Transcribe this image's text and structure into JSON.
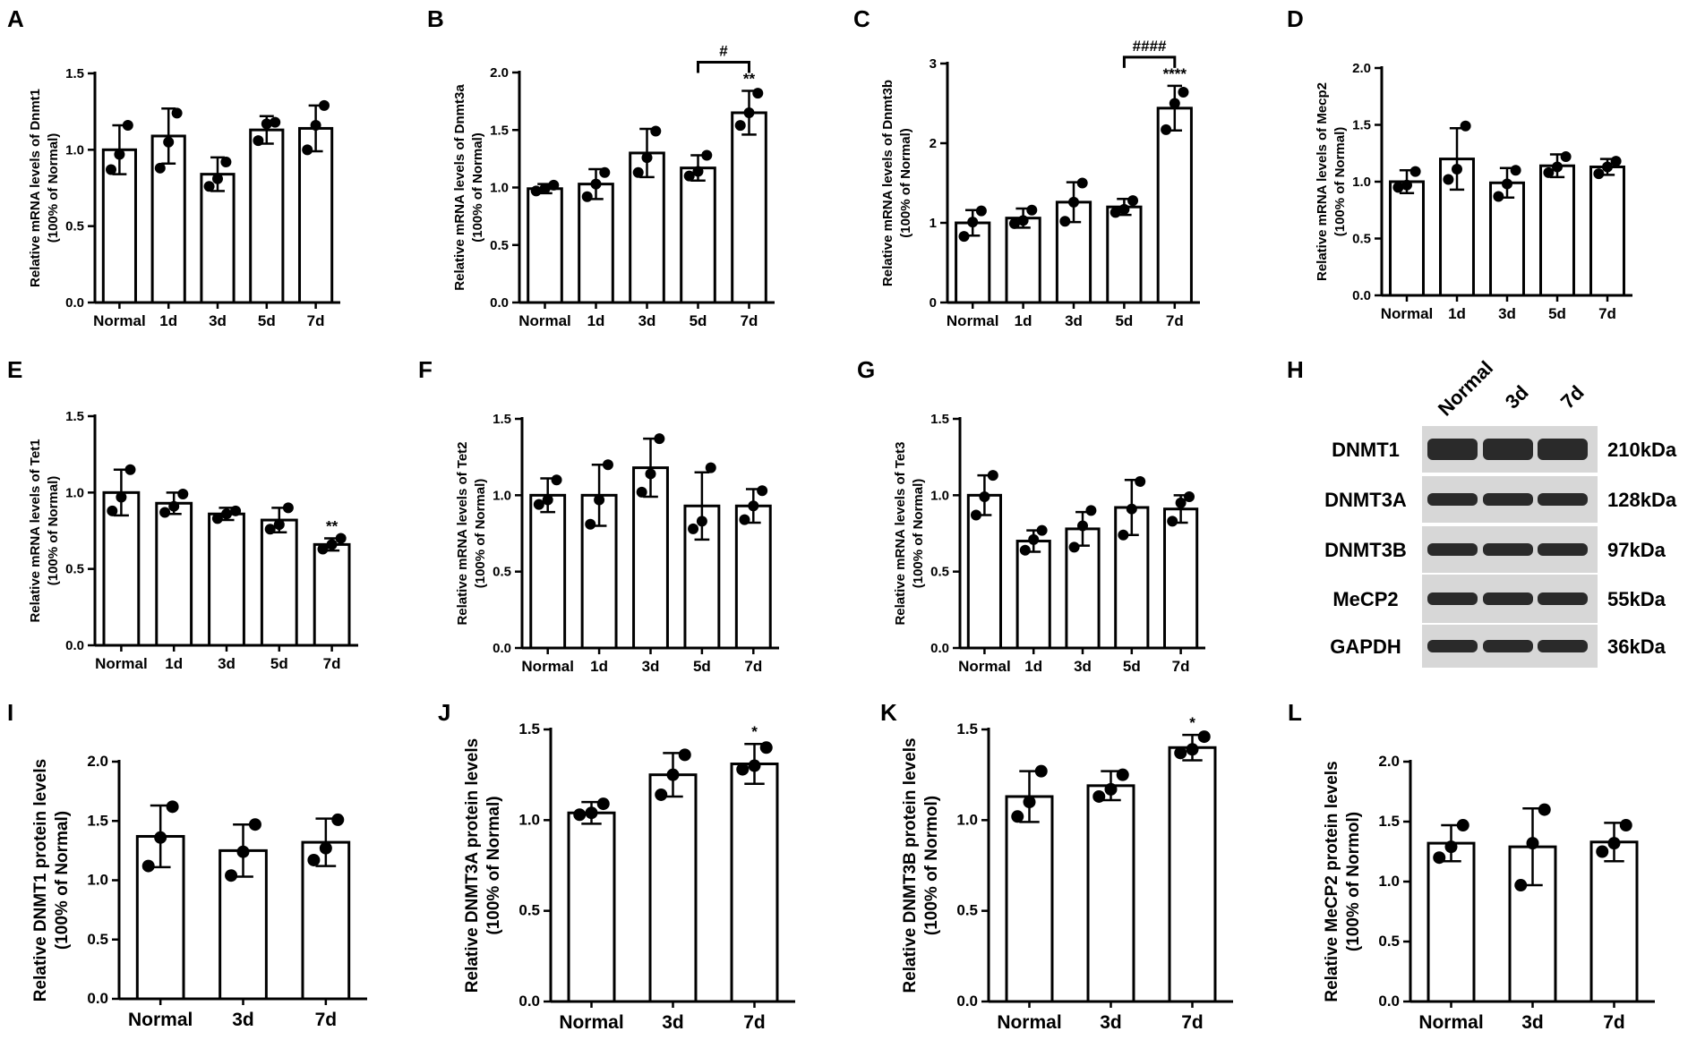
{
  "colors": {
    "bar_fill": "#ffffff",
    "stroke": "#000000",
    "blot_bg": "#d7d7d7",
    "band": "#2a2a2a"
  },
  "chart_data": [
    {
      "id": "A",
      "letter": "A",
      "type": "bar",
      "ylabel": "Relative mRNA levels of Dnmt1",
      "ylabel2": "(100% of Normal)",
      "categories": [
        "Normal",
        "1d",
        "3d",
        "5d",
        "7d"
      ],
      "ylim": [
        0,
        1.5
      ],
      "yticks": [
        "0.0",
        "0.5",
        "1.0",
        "1.5"
      ],
      "values": [
        1.0,
        1.09,
        0.84,
        1.13,
        1.14
      ],
      "sd": [
        0.16,
        0.18,
        0.11,
        0.09,
        0.15
      ],
      "points": [
        [
          0.87,
          0.97,
          1.16
        ],
        [
          0.88,
          1.05,
          1.24
        ],
        [
          0.76,
          0.81,
          0.92
        ],
        [
          1.06,
          1.17,
          1.18
        ],
        [
          1.0,
          1.16,
          1.29
        ]
      ],
      "sig": [
        "",
        "",
        "",
        "",
        ""
      ],
      "bracket": null
    },
    {
      "id": "B",
      "letter": "B",
      "type": "bar",
      "ylabel": "Relative mRNA levels of Dnmt3a",
      "ylabel2": "(100% of Normal)",
      "categories": [
        "Normal",
        "1d",
        "3d",
        "5d",
        "7d"
      ],
      "ylim": [
        0,
        2.0
      ],
      "yticks": [
        "0.0",
        "0.5",
        "1.0",
        "1.5",
        "2.0"
      ],
      "values": [
        0.99,
        1.03,
        1.3,
        1.17,
        1.65
      ],
      "sd": [
        0.04,
        0.13,
        0.21,
        0.11,
        0.19
      ],
      "points": [
        [
          0.97,
          0.99,
          1.02
        ],
        [
          0.92,
          1.03,
          1.13
        ],
        [
          1.13,
          1.26,
          1.49
        ],
        [
          1.1,
          1.14,
          1.28
        ],
        [
          1.54,
          1.65,
          1.82
        ]
      ],
      "sig": [
        "",
        "",
        "",
        "",
        "**"
      ],
      "bracket": {
        "from": 3,
        "to": 4,
        "label": "#"
      }
    },
    {
      "id": "C",
      "letter": "C",
      "type": "bar",
      "ylabel": "Relative mRNA levels of Dnmt3b",
      "ylabel2": "(100% of Normal)",
      "categories": [
        "Normal",
        "1d",
        "3d",
        "5d",
        "7d"
      ],
      "ylim": [
        0,
        3
      ],
      "yticks": [
        "0",
        "1",
        "2",
        "3"
      ],
      "values": [
        1.0,
        1.06,
        1.26,
        1.2,
        2.44
      ],
      "sd": [
        0.16,
        0.12,
        0.25,
        0.1,
        0.28
      ],
      "points": [
        [
          0.83,
          1.01,
          1.15
        ],
        [
          0.99,
          1.03,
          1.16
        ],
        [
          1.02,
          1.26,
          1.5
        ],
        [
          1.13,
          1.17,
          1.28
        ],
        [
          2.17,
          2.5,
          2.64
        ]
      ],
      "sig": [
        "",
        "",
        "",
        "",
        "****"
      ],
      "bracket": {
        "from": 3,
        "to": 4,
        "label": "####"
      }
    },
    {
      "id": "D",
      "letter": "D",
      "type": "bar",
      "ylabel": "Relative mRNA levels of Mecp2",
      "ylabel2": "(100% of Normal)",
      "categories": [
        "Normal",
        "1d",
        "3d",
        "5d",
        "7d"
      ],
      "ylim": [
        0,
        2.0
      ],
      "yticks": [
        "0.0",
        "0.5",
        "1.0",
        "1.5",
        "2.0"
      ],
      "values": [
        1.0,
        1.2,
        0.99,
        1.14,
        1.13
      ],
      "sd": [
        0.1,
        0.27,
        0.13,
        0.1,
        0.07
      ],
      "points": [
        [
          0.95,
          0.97,
          1.09
        ],
        [
          1.02,
          1.11,
          1.49
        ],
        [
          0.87,
          0.98,
          1.1
        ],
        [
          1.08,
          1.13,
          1.22
        ],
        [
          1.07,
          1.13,
          1.18
        ]
      ],
      "sig": [
        "",
        "",
        "",
        "",
        ""
      ],
      "bracket": null
    },
    {
      "id": "E",
      "letter": "E",
      "type": "bar",
      "ylabel": "Relative mRNA levels of Tet1",
      "ylabel2": "(100% of Normal)",
      "categories": [
        "Normal",
        "1d",
        "3d",
        "5d",
        "7d"
      ],
      "ylim": [
        0,
        1.5
      ],
      "yticks": [
        "0.0",
        "0.5",
        "1.0",
        "1.5"
      ],
      "values": [
        1.0,
        0.93,
        0.86,
        0.82,
        0.66
      ],
      "sd": [
        0.15,
        0.07,
        0.04,
        0.08,
        0.04
      ],
      "points": [
        [
          0.88,
          0.97,
          1.15
        ],
        [
          0.87,
          0.91,
          0.99
        ],
        [
          0.83,
          0.86,
          0.88
        ],
        [
          0.76,
          0.79,
          0.9
        ],
        [
          0.63,
          0.66,
          0.7
        ]
      ],
      "sig": [
        "",
        "",
        "",
        "",
        "**"
      ],
      "bracket": null
    },
    {
      "id": "F",
      "letter": "F",
      "type": "bar",
      "ylabel": "Relative mRNA levels of Tet2",
      "ylabel2": "(100% of Normal)",
      "categories": [
        "Normal",
        "1d",
        "3d",
        "5d",
        "7d"
      ],
      "ylim": [
        0,
        1.5
      ],
      "yticks": [
        "0.0",
        "0.5",
        "1.0",
        "1.5"
      ],
      "values": [
        1.0,
        1.0,
        1.18,
        0.93,
        0.93
      ],
      "sd": [
        0.11,
        0.2,
        0.19,
        0.22,
        0.11
      ],
      "points": [
        [
          0.94,
          0.97,
          1.1
        ],
        [
          0.81,
          0.97,
          1.2
        ],
        [
          1.02,
          1.14,
          1.37
        ],
        [
          0.78,
          0.83,
          1.18
        ],
        [
          0.84,
          0.93,
          1.03
        ]
      ],
      "sig": [
        "",
        "",
        "",
        "",
        ""
      ],
      "bracket": null
    },
    {
      "id": "G",
      "letter": "G",
      "type": "bar",
      "ylabel": "Relative mRNA levels of Tet3",
      "ylabel2": "(100% of Normal)",
      "categories": [
        "Normal",
        "1d",
        "3d",
        "5d",
        "7d"
      ],
      "ylim": [
        0,
        1.5
      ],
      "yticks": [
        "0.0",
        "0.5",
        "1.0",
        "1.5"
      ],
      "values": [
        1.0,
        0.7,
        0.78,
        0.92,
        0.91
      ],
      "sd": [
        0.13,
        0.07,
        0.11,
        0.18,
        0.09
      ],
      "points": [
        [
          0.87,
          0.99,
          1.13
        ],
        [
          0.64,
          0.71,
          0.77
        ],
        [
          0.66,
          0.8,
          0.9
        ],
        [
          0.74,
          0.91,
          1.09
        ],
        [
          0.83,
          0.95,
          0.99
        ]
      ],
      "sig": [
        "",
        "",
        "",
        "",
        ""
      ],
      "bracket": null
    },
    {
      "id": "I",
      "letter": "I",
      "type": "bar",
      "big": true,
      "ylabel": "Relative DNMT1 protein levels",
      "ylabel2": "(100% of Normal)",
      "categories": [
        "Normal",
        "3d",
        "7d"
      ],
      "ylim": [
        0,
        2.0
      ],
      "yticks": [
        "0.0",
        "0.5",
        "1.0",
        "1.5",
        "2.0"
      ],
      "values": [
        1.37,
        1.25,
        1.32
      ],
      "sd": [
        0.26,
        0.22,
        0.2
      ],
      "points": [
        [
          1.12,
          1.36,
          1.62
        ],
        [
          1.04,
          1.24,
          1.47
        ],
        [
          1.17,
          1.27,
          1.51
        ]
      ],
      "sig": [
        "",
        "",
        ""
      ],
      "bracket": null
    },
    {
      "id": "J",
      "letter": "J",
      "type": "bar",
      "big": true,
      "ylabel": "Relative DNMT3A protein levels",
      "ylabel2": "(100% of Normal)",
      "categories": [
        "Normal",
        "3d",
        "7d"
      ],
      "ylim": [
        0,
        1.5
      ],
      "yticks": [
        "0.0",
        "0.5",
        "1.0",
        "1.5"
      ],
      "values": [
        1.04,
        1.25,
        1.31
      ],
      "sd": [
        0.06,
        0.12,
        0.11
      ],
      "points": [
        [
          1.03,
          1.04,
          1.09
        ],
        [
          1.14,
          1.25,
          1.36
        ],
        [
          1.28,
          1.3,
          1.4
        ]
      ],
      "sig": [
        "",
        "",
        "*"
      ],
      "bracket": null
    },
    {
      "id": "K",
      "letter": "K",
      "type": "bar",
      "big": true,
      "ylabel": "Relative DNMT3B protein levels",
      "ylabel2": "(100% of Normol)",
      "categories": [
        "Normal",
        "3d",
        "7d"
      ],
      "ylim": [
        0,
        1.5
      ],
      "yticks": [
        "0.0",
        "0.5",
        "1.0",
        "1.5"
      ],
      "values": [
        1.13,
        1.19,
        1.4
      ],
      "sd": [
        0.14,
        0.08,
        0.07
      ],
      "points": [
        [
          1.02,
          1.1,
          1.27
        ],
        [
          1.13,
          1.17,
          1.25
        ],
        [
          1.37,
          1.39,
          1.46
        ]
      ],
      "sig": [
        "",
        "",
        "*"
      ],
      "bracket": null
    },
    {
      "id": "L",
      "letter": "L",
      "type": "bar",
      "big": true,
      "ylabel": "Relative MeCP2 protein levels",
      "ylabel2": "(100% of Normol)",
      "categories": [
        "Normal",
        "3d",
        "7d"
      ],
      "ylim": [
        0,
        2.0
      ],
      "yticks": [
        "0.0",
        "0.5",
        "1.0",
        "1.5",
        "2.0"
      ],
      "values": [
        1.32,
        1.29,
        1.33
      ],
      "sd": [
        0.15,
        0.32,
        0.16
      ],
      "points": [
        [
          1.2,
          1.29,
          1.47
        ],
        [
          0.97,
          1.32,
          1.6
        ],
        [
          1.25,
          1.32,
          1.47
        ]
      ],
      "sig": [
        "",
        "",
        ""
      ],
      "bracket": null
    }
  ],
  "blot": {
    "letter": "H",
    "lanes": [
      "Normal",
      "3d",
      "7d"
    ],
    "proteins": [
      "DNMT1",
      "DNMT3A",
      "DNMT3B",
      "MeCP2",
      "GAPDH"
    ],
    "sizes": [
      "210kDa",
      "128kDa",
      "97kDa",
      "55kDa",
      "36kDa"
    ]
  }
}
